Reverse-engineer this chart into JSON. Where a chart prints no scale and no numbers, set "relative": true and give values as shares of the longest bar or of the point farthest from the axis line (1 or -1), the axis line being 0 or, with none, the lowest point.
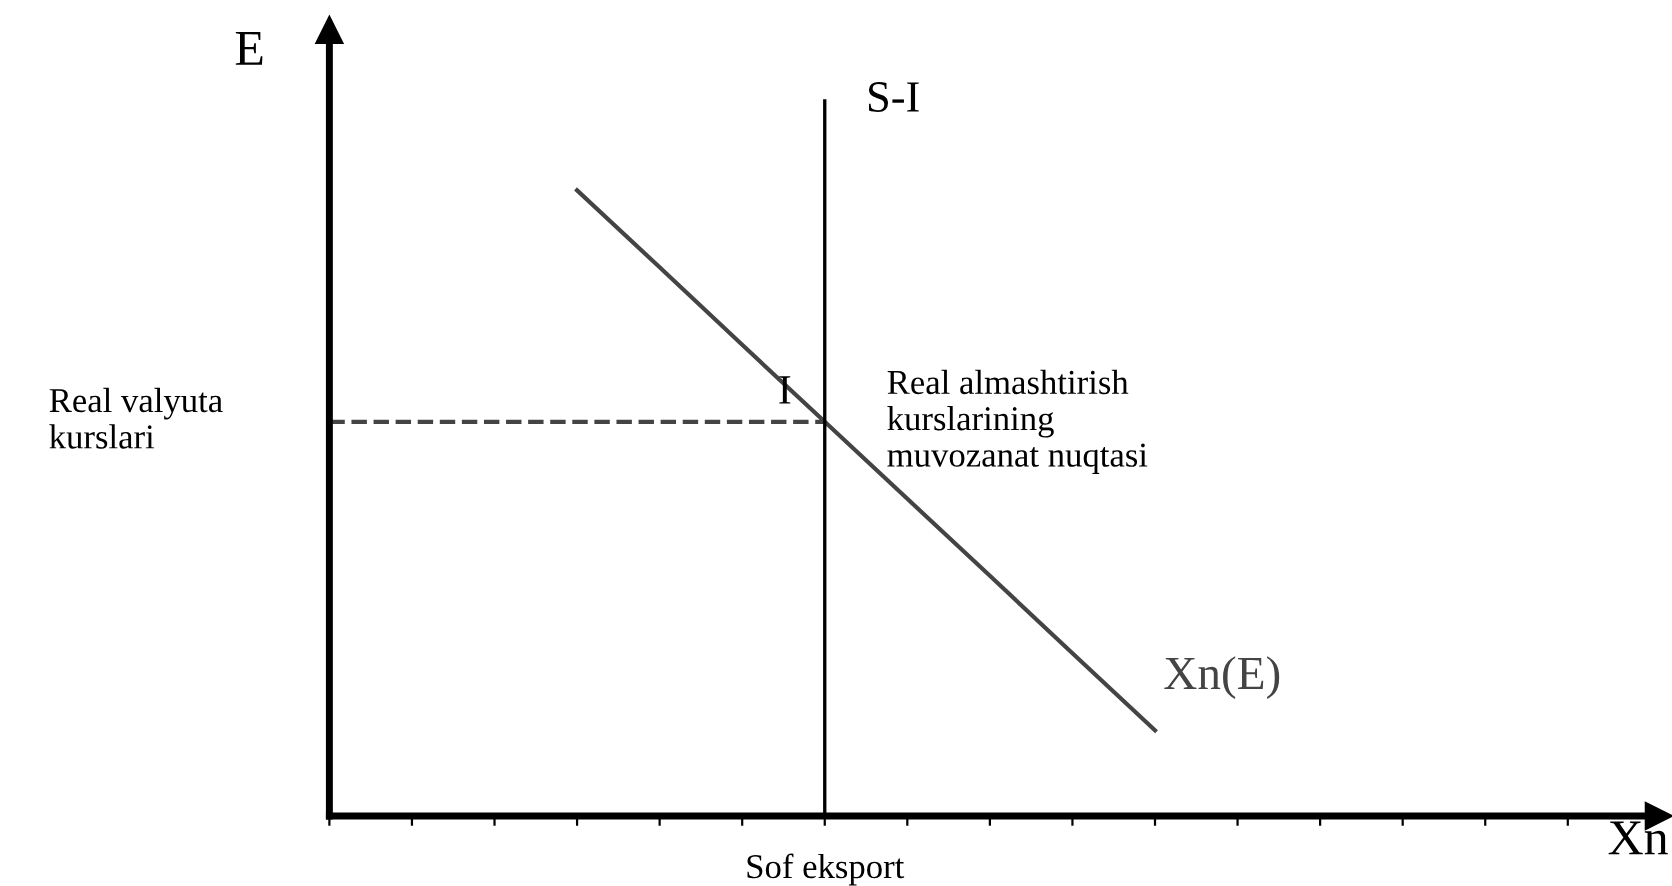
{
  "chart_data": {
    "type": "line",
    "relative": true,
    "xlabel": "Xn",
    "ylabel": "E",
    "categories": [
      null,
      null,
      null,
      null,
      null,
      null,
      null,
      null,
      null,
      null,
      null,
      null,
      null,
      null,
      null,
      null,
      null
    ],
    "series": [
      {
        "name": "Xn(E)",
        "color": "#444444",
        "values": [
          null,
          null,
          null,
          1,
          0.877,
          0.753,
          0.63,
          0.507,
          0.384,
          0.26,
          0.137,
          null,
          null,
          null,
          null,
          null,
          null
        ]
      },
      {
        "color": "#444444",
        "values": [
          0.63,
          0.63,
          0.63,
          0.63,
          0.63,
          0.63,
          0.63,
          null,
          null,
          null,
          null,
          null,
          null,
          null,
          null,
          null,
          null
        ],
        "line_style": "dashed"
      }
    ],
    "annotations": [
      "S-I",
      "I",
      "Real almashtirish\nkurslarining\nmuvozanat nuqtasi",
      "Real valyuta\nkurslari",
      "Sof eksport"
    ]
  }
}
